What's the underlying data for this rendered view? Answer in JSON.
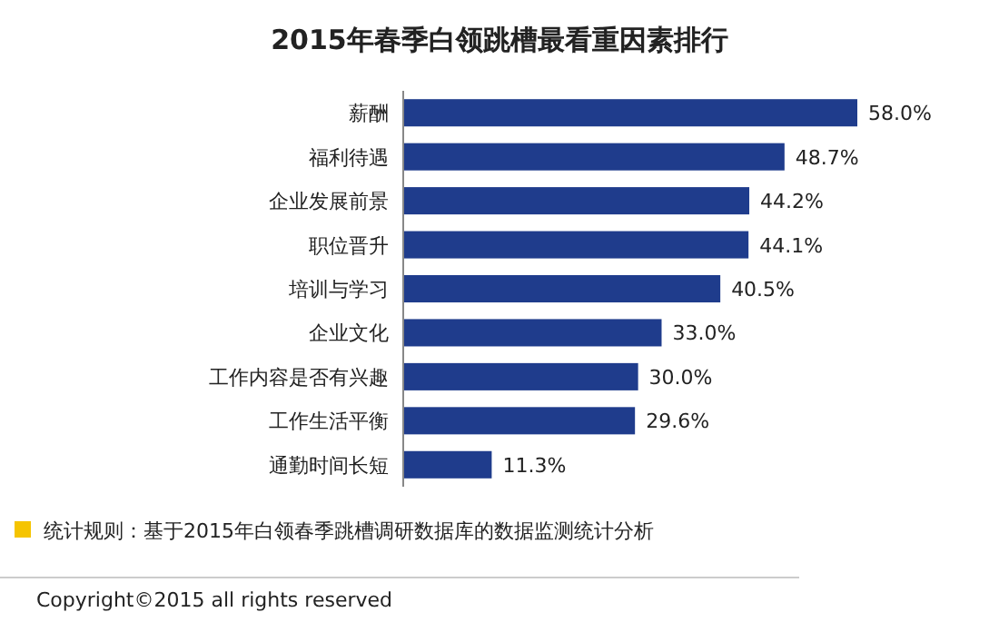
{
  "chart_data": {
    "type": "bar",
    "orientation": "horizontal",
    "title": "2015年春季白领跳槽最看重因素排行",
    "categories": [
      "薪酬",
      "福利待遇",
      "企业发展前景",
      "职位晋升",
      "培训与学习",
      "企业文化",
      "工作内容是否有兴趣",
      "工作生活平衡",
      "通勤时间长短"
    ],
    "values": [
      58.0,
      48.7,
      44.2,
      44.1,
      40.5,
      33.0,
      30.0,
      29.6,
      11.3
    ],
    "value_labels": [
      "58.0%",
      "48.7%",
      "44.2%",
      "44.1%",
      "40.5%",
      "33.0%",
      "30.0%",
      "29.6%",
      "11.3%"
    ],
    "color": "#1f3c8c",
    "annotations": [
      "统计规则：基于2015年白领春季跳槽调研数据库的数据监测统计分析",
      "Copyright©2015 all rights reserved"
    ]
  }
}
